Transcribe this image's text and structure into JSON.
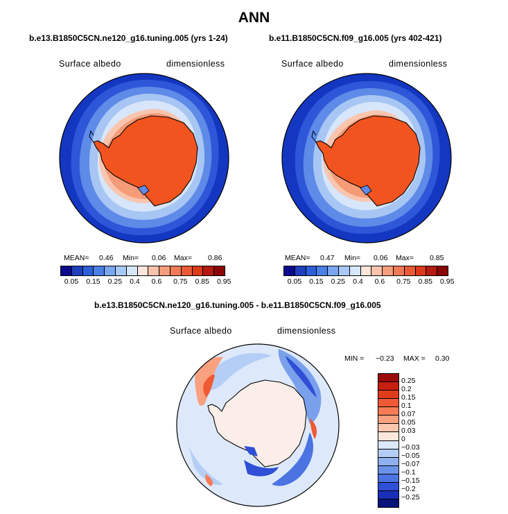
{
  "title": "ANN",
  "panels": [
    {
      "case": "b.e13.B1850C5CN.ne120_g16.tuning.005 (yrs 1-24)",
      "variable": "Surface albedo",
      "units": "dimensionless",
      "stats": {
        "mean_label": "MEAN=",
        "mean": "0.46",
        "min_label": "Min=",
        "min": "0.06",
        "max_label": "Max=",
        "max": "0.86"
      }
    },
    {
      "case": "b.e11.B1850C5CN.f09_g16.005 (yrs 402-421)",
      "variable": "Surface albedo",
      "units": "dimensionless",
      "stats": {
        "mean_label": "MEAN=",
        "mean": "0.47",
        "min_label": "Min=",
        "min": "0.06",
        "max_label": "Max=",
        "max": "0.85"
      }
    }
  ],
  "diff": {
    "title": "b.e13.B1850C5CN.ne120_g16.tuning.005 - b.e11.B1850C5CN.f09_g16.005",
    "variable": "Surface albedo",
    "units": "dimensionless",
    "min_label": "MIN =",
    "min": "−0.23",
    "max_label": "MAX =",
    "max": "0.30"
  },
  "colorbar_top": {
    "ticks": [
      "0.05",
      "0.15",
      "0.25",
      "0.4",
      "0.6",
      "0.75",
      "0.85",
      "0.95"
    ],
    "colors": [
      "#0a0a8c",
      "#1f3fbf",
      "#2d5fd9",
      "#4a7fe6",
      "#7aa6f0",
      "#a9c8f5",
      "#d6e7fa",
      "#fde6dc",
      "#f9c3ad",
      "#f59d7c",
      "#f07a55",
      "#ea5a35",
      "#dd3a1c",
      "#b41a10",
      "#8a0606"
    ]
  },
  "colorbar_diff": {
    "ticks": [
      "0.25",
      "0.2",
      "0.15",
      "0.1",
      "0.07",
      "0.05",
      "0.03",
      "0",
      "−0.03",
      "−0.05",
      "−0.07",
      "−0.1",
      "−0.15",
      "−0.2",
      "−0.25"
    ],
    "colors": [
      "#9b0a0a",
      "#c8200f",
      "#e03c1c",
      "#ef5a34",
      "#f57c55",
      "#f9a07e",
      "#fcc7ae",
      "#fde7dc",
      "#dbe9fb",
      "#b4cef6",
      "#8fb1f0",
      "#6c93ea",
      "#4b73e2",
      "#2f4fd6",
      "#1a2fb8",
      "#0a137a"
    ]
  },
  "colors": {
    "ocean_deep": "#1437c2",
    "ice_land": "#f25420",
    "diff_background": "#dde9fb"
  }
}
